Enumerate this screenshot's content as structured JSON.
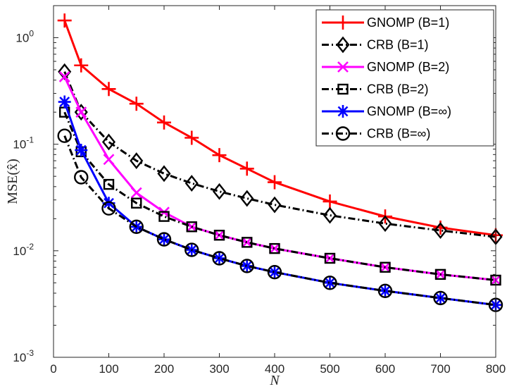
{
  "chart_data": {
    "type": "line",
    "xlabel": "N",
    "ylabel": "MSE(x̂)",
    "xlim": [
      0,
      800
    ],
    "ylim": [
      0.001,
      2
    ],
    "yscale": "log",
    "x_ticks": [
      0,
      100,
      200,
      300,
      400,
      500,
      600,
      700,
      800
    ],
    "x_tick_labels": [
      "0",
      "100",
      "200",
      "300",
      "400",
      "500",
      "600",
      "700",
      "800"
    ],
    "y_ticks": [
      {
        "value": 0.001,
        "base": "10",
        "exp": "-3"
      },
      {
        "value": 0.01,
        "base": "10",
        "exp": "-2"
      },
      {
        "value": 0.1,
        "base": "10",
        "exp": "-1"
      },
      {
        "value": 1,
        "base": "10",
        "exp": "0"
      }
    ],
    "legend_position": "top-right",
    "x": [
      20,
      50,
      100,
      150,
      200,
      250,
      300,
      350,
      400,
      500,
      600,
      700,
      800
    ],
    "series": [
      {
        "name": "GNOMP (B=1)",
        "color": "#ff0000",
        "dash": "solid",
        "marker": "plus",
        "values": [
          1.45,
          0.55,
          0.33,
          0.24,
          0.16,
          0.115,
          0.079,
          0.059,
          0.044,
          0.029,
          0.021,
          0.0165,
          0.014
        ]
      },
      {
        "name": "CRB (B=1)",
        "color": "#000000",
        "dash": "dashdot",
        "marker": "diamond",
        "values": [
          0.48,
          0.2,
          0.105,
          0.07,
          0.053,
          0.043,
          0.036,
          0.031,
          0.027,
          0.0215,
          0.018,
          0.0155,
          0.0135
        ]
      },
      {
        "name": "GNOMP (B=2)",
        "color": "#ff00ff",
        "dash": "solid",
        "marker": "x",
        "values": [
          0.43,
          0.2,
          0.072,
          0.035,
          0.023,
          0.0168,
          0.014,
          0.012,
          0.0105,
          0.0085,
          0.007,
          0.006,
          0.0053
        ]
      },
      {
        "name": "CRB (B=2)",
        "color": "#000000",
        "dash": "dashdot",
        "marker": "square",
        "values": [
          0.2,
          0.085,
          0.042,
          0.028,
          0.021,
          0.0168,
          0.014,
          0.012,
          0.0105,
          0.0085,
          0.007,
          0.006,
          0.0053
        ]
      },
      {
        "name": "GNOMP (B=∞)",
        "color": "#0000ff",
        "dash": "solid",
        "marker": "asterisk",
        "values": [
          0.25,
          0.088,
          0.028,
          0.0168,
          0.0128,
          0.0102,
          0.0085,
          0.0072,
          0.0063,
          0.005,
          0.0042,
          0.0036,
          0.0031
        ]
      },
      {
        "name": "CRB (B=∞)",
        "color": "#000000",
        "dash": "dashdot",
        "marker": "circle",
        "values": [
          0.12,
          0.049,
          0.025,
          0.0168,
          0.0128,
          0.0102,
          0.0085,
          0.0072,
          0.0063,
          0.005,
          0.0042,
          0.0036,
          0.0031
        ]
      }
    ]
  }
}
